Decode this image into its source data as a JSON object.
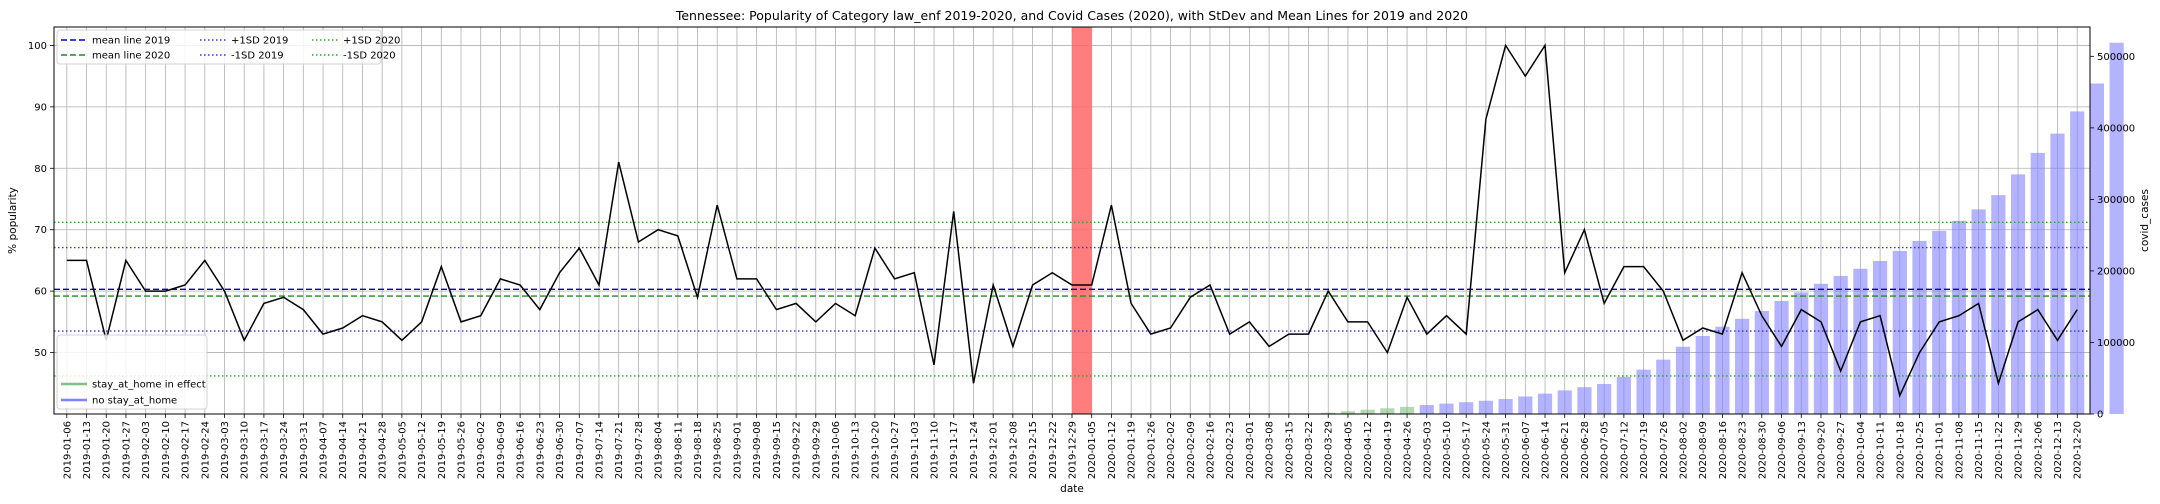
{
  "chart_data": {
    "type": "line",
    "title": "Tennessee: Popularity of Category law_enf 2019-2020, and Covid Cases (2020), with StDev and Mean Lines for 2019 and 2020",
    "xlabel": "date",
    "ylabel": "% popularity",
    "y2label": "covid_cases",
    "ylim": [
      40,
      103
    ],
    "y2lim": [
      0,
      541000
    ],
    "yticks": [
      50,
      60,
      70,
      80,
      90,
      100
    ],
    "y2ticks": [
      0,
      100000,
      200000,
      300000,
      400000,
      500000
    ],
    "grid": true,
    "categories": [
      "2019-01-06",
      "2019-01-13",
      "2019-01-20",
      "2019-01-27",
      "2019-02-03",
      "2019-02-10",
      "2019-02-17",
      "2019-02-24",
      "2019-03-03",
      "2019-03-10",
      "2019-03-17",
      "2019-03-24",
      "2019-03-31",
      "2019-04-07",
      "2019-04-14",
      "2019-04-21",
      "2019-04-28",
      "2019-05-05",
      "2019-05-12",
      "2019-05-19",
      "2019-05-26",
      "2019-06-02",
      "2019-06-09",
      "2019-06-16",
      "2019-06-23",
      "2019-06-30",
      "2019-07-07",
      "2019-07-14",
      "2019-07-21",
      "2019-07-28",
      "2019-08-04",
      "2019-08-11",
      "2019-08-18",
      "2019-08-25",
      "2019-09-01",
      "2019-09-08",
      "2019-09-15",
      "2019-09-22",
      "2019-09-29",
      "2019-10-06",
      "2019-10-13",
      "2019-10-20",
      "2019-10-27",
      "2019-11-03",
      "2019-11-10",
      "2019-11-17",
      "2019-11-24",
      "2019-12-01",
      "2019-12-08",
      "2019-12-15",
      "2019-12-22",
      "2019-12-29",
      "2020-01-05",
      "2020-01-12",
      "2020-01-19",
      "2020-01-26",
      "2020-02-02",
      "2020-02-09",
      "2020-02-16",
      "2020-02-23",
      "2020-03-01",
      "2020-03-08",
      "2020-03-15",
      "2020-03-22",
      "2020-03-29",
      "2020-04-05",
      "2020-04-12",
      "2020-04-19",
      "2020-04-26",
      "2020-05-03",
      "2020-05-10",
      "2020-05-17",
      "2020-05-24",
      "2020-05-31",
      "2020-06-07",
      "2020-06-14",
      "2020-06-21",
      "2020-06-28",
      "2020-07-05",
      "2020-07-12",
      "2020-07-19",
      "2020-07-26",
      "2020-08-02",
      "2020-08-09",
      "2020-08-16",
      "2020-08-23",
      "2020-08-30",
      "2020-09-06",
      "2020-09-13",
      "2020-09-20",
      "2020-09-27",
      "2020-10-04",
      "2020-10-11",
      "2020-10-18",
      "2020-10-25",
      "2020-11-01",
      "2020-11-08",
      "2020-11-15",
      "2020-11-22",
      "2020-11-29",
      "2020-12-06",
      "2020-12-13",
      "2020-12-20"
    ],
    "tick_labels": [
      "2019-01-06",
      "2019-01-13",
      "2019-01-20",
      "2019-01-27",
      "2019-02-03",
      "2019-02-10",
      "2019-02-17",
      "2019-02-24",
      "2019-03-03",
      "2019-03-10",
      "2019-03-17",
      "2019-03-24",
      "2019-03-31",
      "2019-04-07",
      "2019-04-14",
      "2019-04-21",
      "2019-04-28",
      "2019-05-05",
      "2019-05-12",
      "2019-05-19",
      "2019-05-26",
      "2019-06-02",
      "2019-06-09",
      "2019-06-16",
      "2019-06-23",
      "2019-06-30",
      "2019-07-07",
      "2019-07-14",
      "2019-07-21",
      "2019-07-28",
      "2019-08-04",
      "2019-08-11",
      "2019-08-18",
      "2019-08-25",
      "2019-09-01",
      "2019-09-08",
      "2019-09-15",
      "2019-09-22",
      "2019-09-29",
      "2019-10-06",
      "2019-10-13",
      "2019-10-20",
      "2019-10-27",
      "2019-11-03",
      "2019-11-10",
      "2019-11-17",
      "2019-11-24",
      "2019-12-01",
      "2019-12-08",
      "2019-12-15",
      "2019-12-22",
      "2019-12-29",
      "2020-01-05",
      "2020-01-12",
      "2020-01-19",
      "2020-01-26",
      "2020-02-02",
      "2020-02-09",
      "2020-02-16",
      "2020-02-23",
      "2020-03-01",
      "2020-03-08",
      "2020-03-15",
      "2020-03-22",
      "2020-03-29",
      "2020-04-05",
      "2020-04-12",
      "2020-04-19",
      "2020-04-26",
      "2020-05-03",
      "2020-05-10",
      "2020-05-17",
      "2020-05-24",
      "2020-05-31",
      "2020-06-07",
      "2020-06-14",
      "2020-06-21",
      "2020-06-28",
      "2020-07-05",
      "2020-07-12",
      "2020-07-19",
      "2020-07-26",
      "2020-08-02",
      "2020-08-09",
      "2020-08-16",
      "2020-08-23",
      "2020-08-30",
      "2020-09-06",
      "2020-09-13",
      "2020-09-20",
      "2020-09-27",
      "2020-10-04",
      "2020-10-11",
      "2020-10-18",
      "2020-10-25",
      "2020-11-01",
      "2020-11-08",
      "2020-11-15",
      "2020-11-22",
      "2020-11-29",
      "2020-12-06",
      "2020-12-13",
      "2020-12-20"
    ],
    "popularity": [
      65,
      65,
      52,
      65,
      60,
      60,
      61,
      65,
      60,
      52,
      58,
      59,
      57,
      53,
      54,
      56,
      55,
      52,
      55,
      64,
      55,
      56,
      62,
      61,
      57,
      63,
      67,
      61,
      81,
      68,
      70,
      69,
      59,
      74,
      62,
      62,
      57,
      58,
      55,
      58,
      56,
      67,
      62,
      63,
      48,
      73,
      45,
      61,
      51,
      61,
      63,
      61,
      61,
      74,
      58,
      53,
      54,
      59,
      61,
      53,
      55,
      51,
      53,
      53,
      60,
      55,
      55,
      50,
      59,
      53,
      56,
      53,
      88,
      100,
      95,
      100,
      63,
      70,
      58,
      64,
      64,
      60,
      52,
      54,
      53,
      63,
      56,
      51,
      57,
      55,
      47,
      55,
      56,
      43,
      50,
      55,
      56,
      58,
      45,
      55,
      57,
      52,
      57
    ],
    "covid_cases": [
      0,
      0,
      0,
      0,
      0,
      0,
      0,
      0,
      0,
      0,
      0,
      0,
      0,
      0,
      0,
      0,
      0,
      0,
      0,
      0,
      0,
      0,
      0,
      0,
      0,
      0,
      0,
      0,
      0,
      0,
      0,
      0,
      0,
      0,
      0,
      0,
      0,
      0,
      0,
      0,
      0,
      0,
      0,
      0,
      0,
      0,
      0,
      0,
      0,
      0,
      0,
      0,
      0,
      0,
      0,
      0,
      0,
      0,
      0,
      0,
      0,
      0,
      0,
      0,
      1800,
      3800,
      6000,
      8000,
      10000,
      12500,
      14500,
      16500,
      18500,
      21000,
      24500,
      28500,
      33000,
      37500,
      42000,
      52000,
      62000,
      76000,
      94000,
      109000,
      122000,
      133000,
      144000,
      158000,
      170000,
      182000,
      193000,
      203000,
      214000,
      228000,
      242000,
      256000,
      270000,
      286000,
      306000,
      335000,
      365000,
      392000,
      423000,
      462000,
      519000
    ],
    "stay_at_home_dates": [
      "2020-03-29",
      "2020-04-05",
      "2020-04-12",
      "2020-04-19",
      "2020-04-26"
    ],
    "highlight_range": [
      "2019-12-29",
      "2020-01-05"
    ],
    "reference_lines": [
      {
        "name": "mean line 2019",
        "value": 60.3,
        "color": "#0000cc",
        "style": "dashed"
      },
      {
        "name": "mean line 2020",
        "value": 59.2,
        "color": "#228b22",
        "style": "dashed"
      },
      {
        "name": "+1SD 2019",
        "value": 67.1,
        "color": "#3333dd",
        "style": "dotted"
      },
      {
        "name": "-1SD 2019",
        "value": 53.5,
        "color": "#3333dd",
        "style": "dotted"
      },
      {
        "name": "+1SD 2020",
        "value": 71.2,
        "color": "#22aa22",
        "style": "dotted"
      },
      {
        "name": "-1SD 2020",
        "value": 46.2,
        "color": "#22aa22",
        "style": "dotted"
      }
    ],
    "legend_top": [
      "mean line 2019",
      "mean line 2020",
      "+1SD 2019",
      "-1SD 2019",
      "+1SD 2020",
      "-1SD 2020"
    ],
    "legend_bottom": [
      "stay_at_home in effect",
      "no stay_at_home"
    ],
    "colors": {
      "popularity_line": "#000000",
      "bar_no_stay": "#8080ff",
      "bar_stay": "#80c080",
      "highlight": "#ff6666",
      "grid": "#b0b0b0"
    }
  }
}
